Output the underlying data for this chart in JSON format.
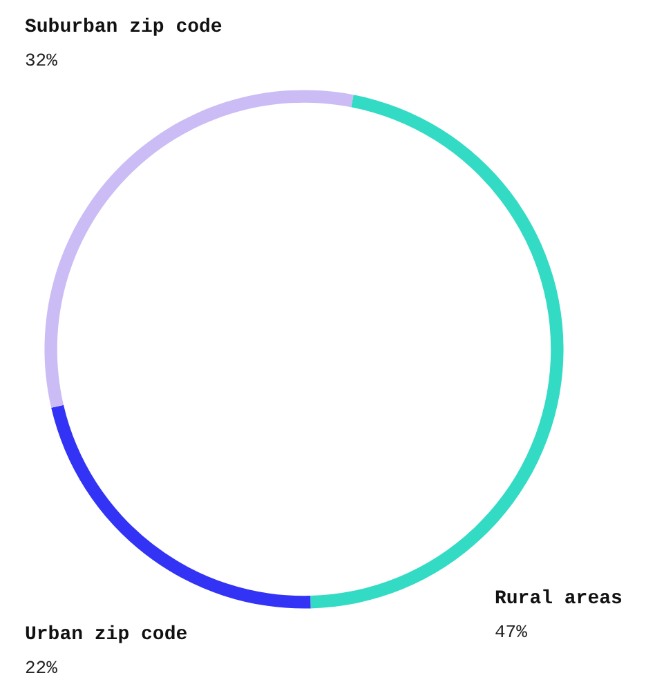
{
  "chart_data": {
    "type": "donut",
    "categories": [
      "Rural areas",
      "Urban zip code",
      "Suburban zip code"
    ],
    "values": [
      47,
      22,
      32
    ],
    "colors": [
      "#33dbc4",
      "#3333f5",
      "#cbbcf5"
    ],
    "value_labels": [
      "47%",
      "22%",
      "32%"
    ],
    "legend": false
  }
}
